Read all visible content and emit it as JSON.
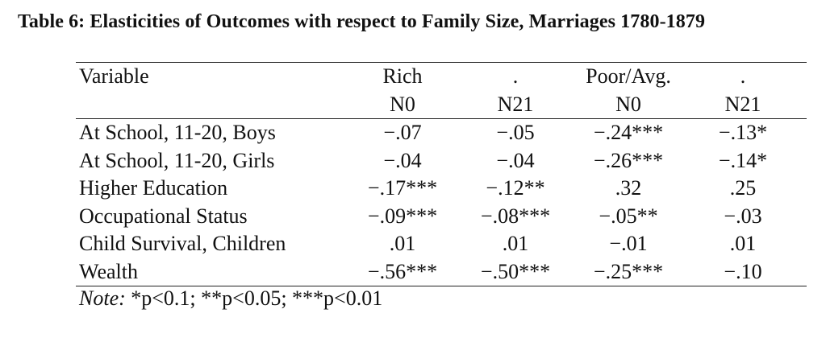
{
  "caption": "Table 6: Elasticities of Outcomes with respect to Family Size, Marriages 1780-1879",
  "header": {
    "variable": "Variable",
    "group1": "Rich",
    "group1_dot": ".",
    "group2": "Poor/Avg.",
    "group2_dot": ".",
    "sub": [
      "N0",
      "N21",
      "N0",
      "N21"
    ]
  },
  "rows": [
    {
      "label": "At School, 11-20, Boys",
      "values": [
        "−.07",
        "−.05",
        "−.24***",
        "−.13*"
      ]
    },
    {
      "label": "At School, 11-20, Girls",
      "values": [
        "−.04",
        "−.04",
        "−.26***",
        "−.14*"
      ]
    },
    {
      "label": "Higher Education",
      "values": [
        "−.17***",
        "−.12**",
        ".32",
        ".25"
      ]
    },
    {
      "label": "Occupational Status",
      "values": [
        "−.09***",
        "−.08***",
        "−.05**",
        "−.03"
      ]
    },
    {
      "label": "Child Survival, Children",
      "values": [
        ".01",
        ".01",
        "−.01",
        ".01"
      ]
    },
    {
      "label": "Wealth",
      "values": [
        "−.56***",
        "−.50***",
        "−.25***",
        "−.10"
      ]
    }
  ],
  "note": {
    "label": "Note:",
    "text": " *p<0.1; **p<0.05; ***p<0.01"
  }
}
